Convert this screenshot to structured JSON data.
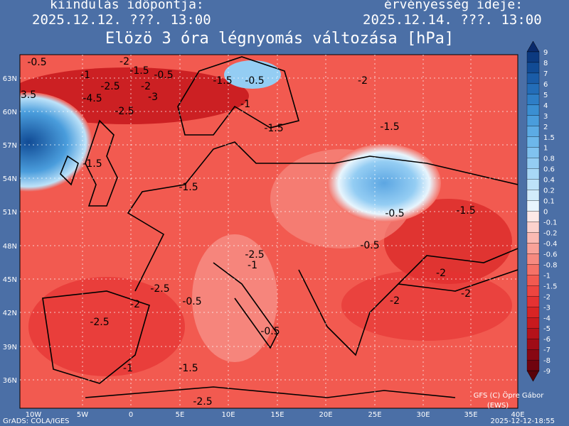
{
  "header": {
    "left_caption": "kiindulás időpontja:",
    "left_date": "2025.12.12. ???. 13:00",
    "right_caption": "érvényesség ideje:",
    "right_date": "2025.12.14. ???. 13:00",
    "title": "Elözö 3 óra légnyomás változása [hPa]"
  },
  "map": {
    "lat_labels": [
      "63N",
      "60N",
      "57N",
      "54N",
      "51N",
      "48N",
      "45N",
      "42N",
      "39N",
      "36N"
    ],
    "lon_labels": [
      "10W",
      "5W",
      "0",
      "5E",
      "10E",
      "15E",
      "20E",
      "25E",
      "30E",
      "35E",
      "40E"
    ],
    "contour_labels": [
      "-0.5",
      "-2",
      "-1.5",
      "-0.5",
      "-1",
      "-2.5",
      "-2",
      "-3",
      "3.5",
      "-4.5",
      "-2.5",
      "-1",
      "-1.5",
      "-0.5",
      "-2",
      "-1.5",
      "-1.5",
      "-1.5",
      "-1.5",
      "-0.5",
      "-0.5",
      "-1.5",
      "-2.5",
      "-1",
      "-2",
      "-2.5",
      "-2",
      "-2",
      "-0.5",
      "-2",
      "-2.5",
      "-0.5",
      "-1",
      "-1.5",
      "-2.5"
    ],
    "credit": "GFS (C) Öpre Gábor",
    "credit_sub": "(EWS)"
  },
  "colorbar": {
    "labels": [
      "9",
      "8",
      "7",
      "6",
      "5",
      "4",
      "3",
      "2",
      "1.5",
      "1",
      "0.8",
      "0.6",
      "0.4",
      "0.2",
      "0.1",
      "0",
      "-0.1",
      "-0.2",
      "-0.4",
      "-0.6",
      "-0.8",
      "-1",
      "-1.5",
      "-2",
      "-3",
      "-4",
      "-5",
      "-6",
      "-7",
      "-8",
      "-9"
    ],
    "colors": [
      "#0a2a6b",
      "#0c3a80",
      "#114b95",
      "#1a5ca8",
      "#236db8",
      "#2e7ec6",
      "#3b8fd2",
      "#4a9ddc",
      "#5cabe4",
      "#6db7ea",
      "#80c2ef",
      "#94cdf3",
      "#a8d8f6",
      "#bde2f9",
      "#d2ecfb",
      "#e8f5fd",
      "#fde9e7",
      "#fcd2cd",
      "#fbbab3",
      "#f9a299",
      "#f78a80",
      "#f57267",
      "#f25a50",
      "#ee4540",
      "#e53232",
      "#d82424",
      "#c81a1e",
      "#b5121a",
      "#9f0c16",
      "#880712",
      "#70040e",
      "#58020a"
    ]
  },
  "footer": {
    "left": "GrADS: COLA/IGES",
    "right": "2025-12-12-18:55"
  }
}
